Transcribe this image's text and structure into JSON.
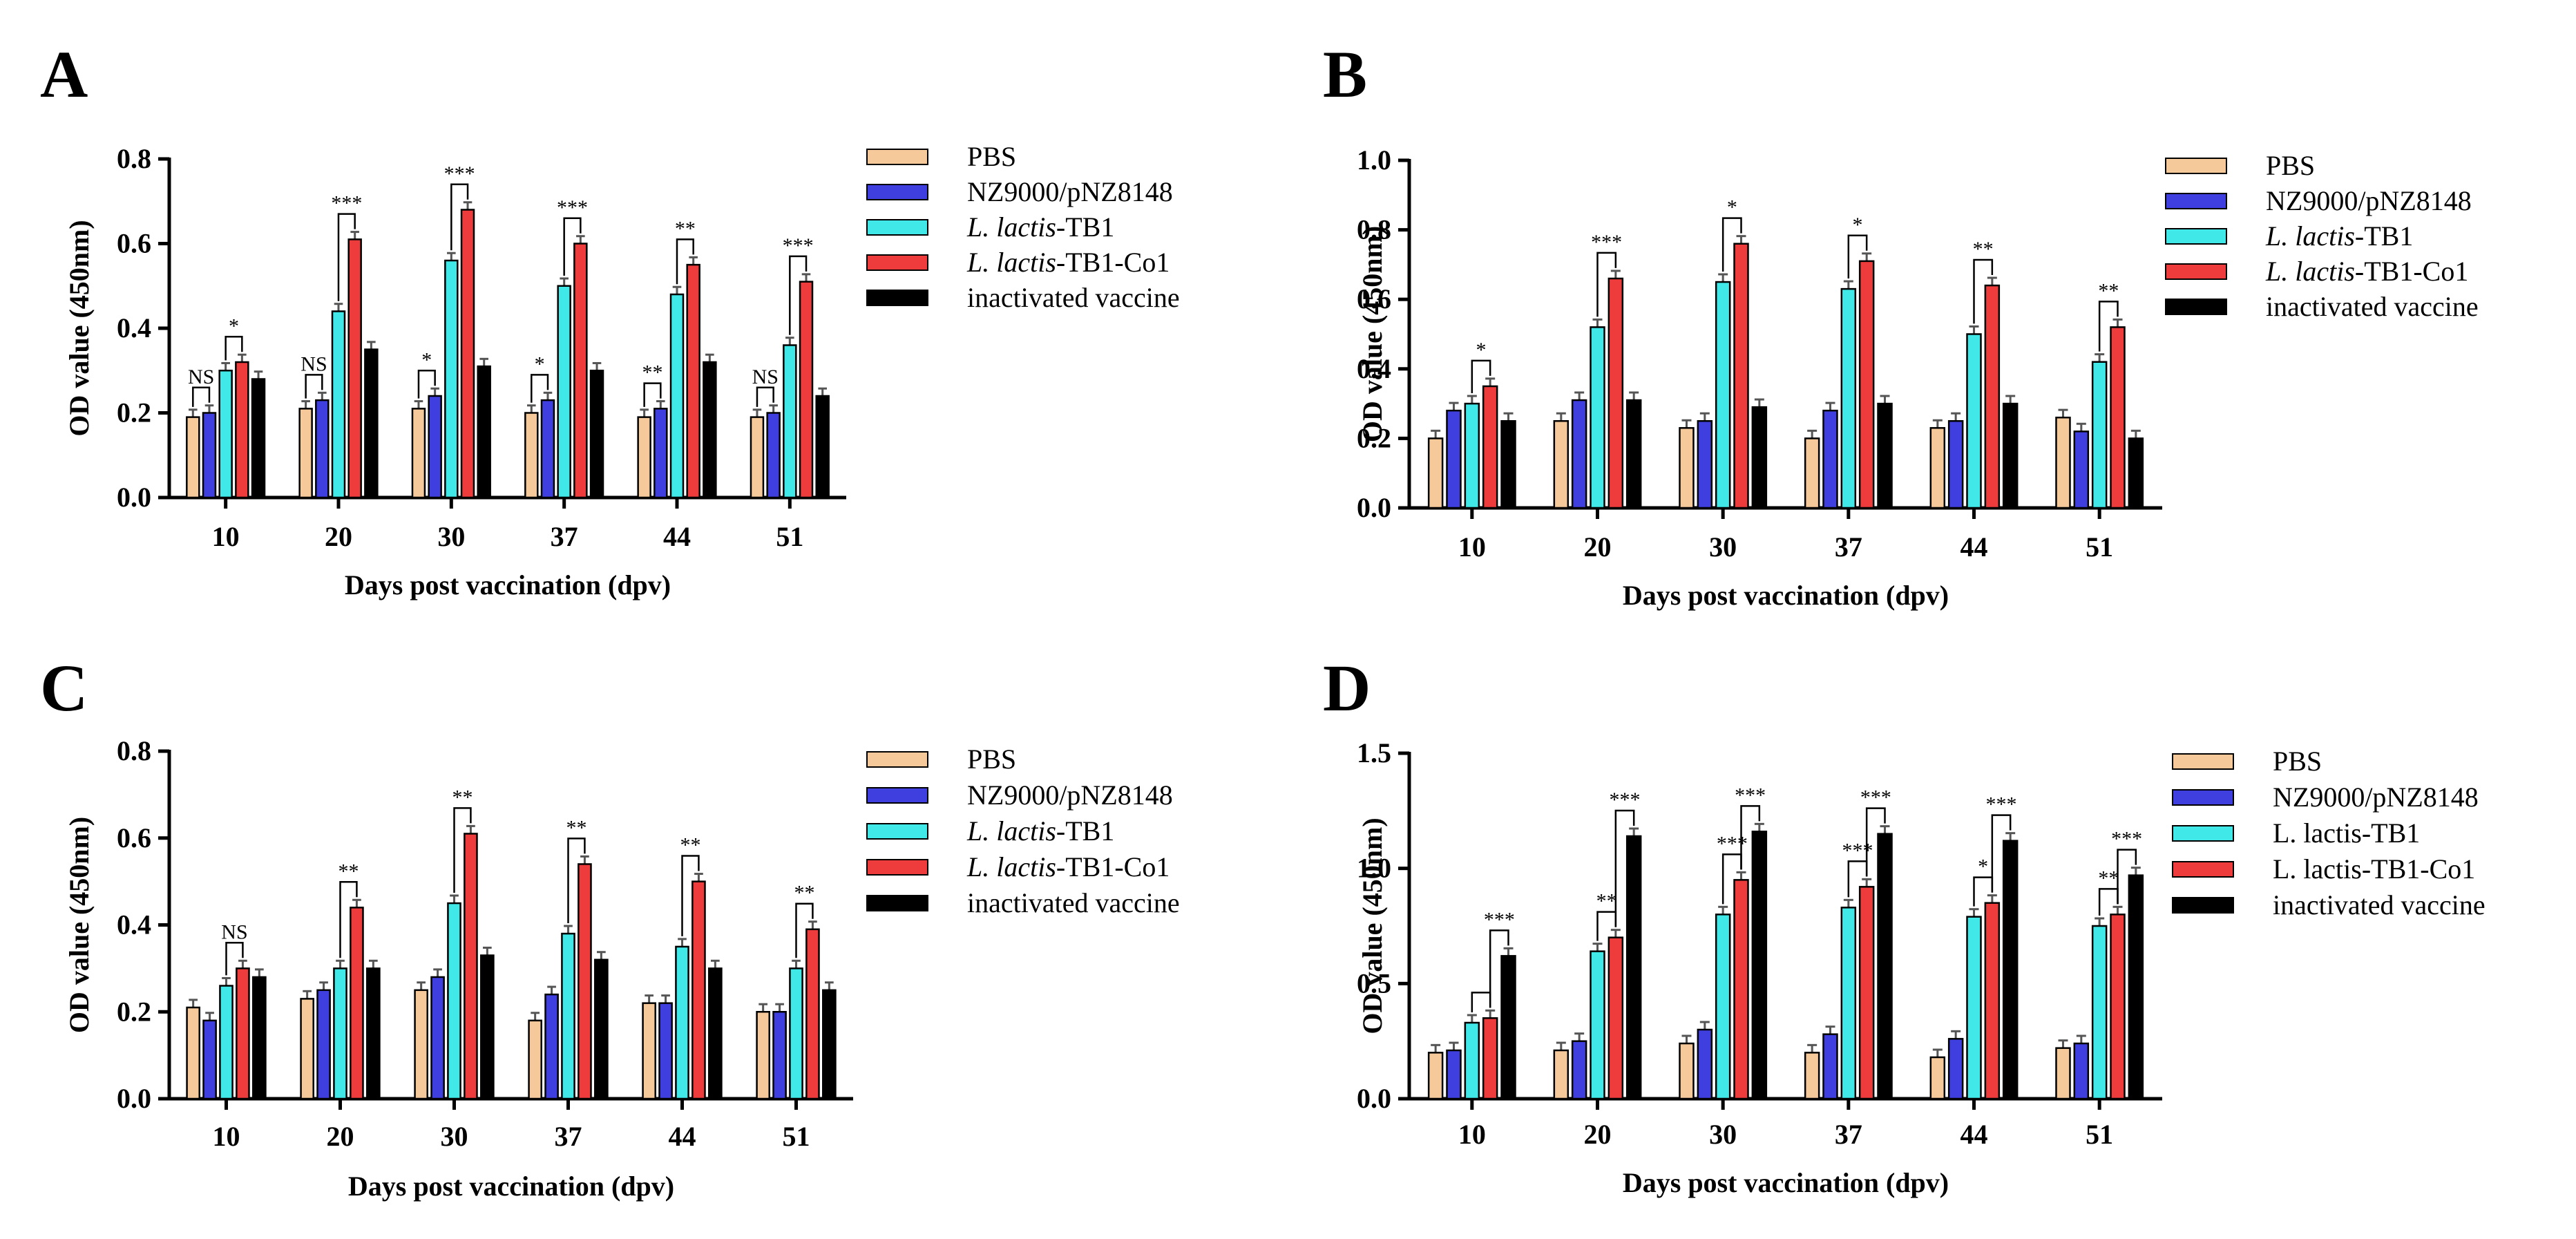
{
  "colors": {
    "PBS": "#f5c99a",
    "NZ9000/pNZ8148": "#3f3fe0",
    "L. lactis-TB1": "#40e8e8",
    "L. lactis-TB1-Co1": "#ee3b3b",
    "inactivated vaccine": "#000000"
  },
  "chart_data": [
    {
      "panel": "A",
      "type": "bar",
      "categories": [
        "10",
        "20",
        "30",
        "37",
        "44",
        "51"
      ],
      "xlabel": "Days post vaccination  (dpv)",
      "ylabel": "OD value (450nm)",
      "ylim": [
        0,
        0.8
      ],
      "yticks": [
        "0.0",
        "0.2",
        "0.4",
        "0.6",
        "0.8"
      ],
      "legend": [
        {
          "key": "PBS",
          "parts": [
            {
              "t": "PBS",
              "i": false
            }
          ]
        },
        {
          "key": "NZ9000/pNZ8148",
          "parts": [
            {
              "t": "NZ9000/pNZ8148",
              "i": false
            }
          ]
        },
        {
          "key": "L. lactis-TB1",
          "parts": [
            {
              "t": "L. lactis",
              "i": true
            },
            {
              "t": "-TB1",
              "i": false
            }
          ]
        },
        {
          "key": "L. lactis-TB1-Co1",
          "parts": [
            {
              "t": "L. lactis",
              "i": true
            },
            {
              "t": "-TB1-Co1",
              "i": false
            }
          ]
        },
        {
          "key": "inactivated vaccine",
          "parts": [
            {
              "t": "inactivated vaccine",
              "i": false
            }
          ]
        }
      ],
      "series": [
        {
          "name": "PBS",
          "values": [
            0.19,
            0.21,
            0.21,
            0.2,
            0.19,
            0.19
          ]
        },
        {
          "name": "NZ9000/pNZ8148",
          "values": [
            0.2,
            0.23,
            0.24,
            0.23,
            0.21,
            0.2
          ]
        },
        {
          "name": "L. lactis-TB1",
          "values": [
            0.3,
            0.44,
            0.56,
            0.5,
            0.48,
            0.36
          ]
        },
        {
          "name": "L. lactis-TB1-Co1",
          "values": [
            0.32,
            0.61,
            0.68,
            0.6,
            0.55,
            0.51
          ]
        },
        {
          "name": "inactivated vaccine",
          "values": [
            0.28,
            0.35,
            0.31,
            0.3,
            0.32,
            0.24
          ]
        }
      ],
      "annotations": [
        {
          "g": 0,
          "a": 0,
          "b": 1,
          "text": "NS"
        },
        {
          "g": 0,
          "a": 2,
          "b": 3,
          "text": "*"
        },
        {
          "g": 1,
          "a": 0,
          "b": 1,
          "text": "NS"
        },
        {
          "g": 1,
          "a": 2,
          "b": 3,
          "text": "***"
        },
        {
          "g": 2,
          "a": 0,
          "b": 1,
          "text": "*"
        },
        {
          "g": 2,
          "a": 2,
          "b": 3,
          "text": "***"
        },
        {
          "g": 3,
          "a": 0,
          "b": 1,
          "text": "*"
        },
        {
          "g": 3,
          "a": 2,
          "b": 3,
          "text": "***"
        },
        {
          "g": 4,
          "a": 0,
          "b": 1,
          "text": "**"
        },
        {
          "g": 4,
          "a": 2,
          "b": 3,
          "text": "**"
        },
        {
          "g": 5,
          "a": 0,
          "b": 1,
          "text": "NS"
        },
        {
          "g": 5,
          "a": 2,
          "b": 3,
          "text": "***"
        }
      ]
    },
    {
      "panel": "B",
      "type": "bar",
      "categories": [
        "10",
        "20",
        "30",
        "37",
        "44",
        "51"
      ],
      "xlabel": "Days post vaccination  (dpv)",
      "ylabel": "OD value (450nm)",
      "ylim": [
        0,
        1.0
      ],
      "yticks": [
        "0.0",
        "0.2",
        "0.4",
        "0.6",
        "0.8",
        "1.0"
      ],
      "legend": [
        {
          "key": "PBS",
          "parts": [
            {
              "t": "PBS",
              "i": false
            }
          ]
        },
        {
          "key": "NZ9000/pNZ8148",
          "parts": [
            {
              "t": "NZ9000/pNZ8148",
              "i": false
            }
          ]
        },
        {
          "key": "L. lactis-TB1",
          "parts": [
            {
              "t": "L. lactis",
              "i": true
            },
            {
              "t": "-TB1",
              "i": false
            }
          ]
        },
        {
          "key": "L. lactis-TB1-Co1",
          "parts": [
            {
              "t": "L. lactis",
              "i": true
            },
            {
              "t": "-TB1-Co1",
              "i": false
            }
          ]
        },
        {
          "key": "inactivated vaccine",
          "parts": [
            {
              "t": "inactivated vaccine",
              "i": false
            }
          ]
        }
      ],
      "series": [
        {
          "name": "PBS",
          "values": [
            0.2,
            0.25,
            0.23,
            0.2,
            0.23,
            0.26
          ]
        },
        {
          "name": "NZ9000/pNZ8148",
          "values": [
            0.28,
            0.31,
            0.25,
            0.28,
            0.25,
            0.22
          ]
        },
        {
          "name": "L. lactis-TB1",
          "values": [
            0.3,
            0.52,
            0.65,
            0.63,
            0.5,
            0.42
          ]
        },
        {
          "name": "L. lactis-TB1-Co1",
          "values": [
            0.35,
            0.66,
            0.76,
            0.71,
            0.64,
            0.52
          ]
        },
        {
          "name": "inactivated vaccine",
          "values": [
            0.25,
            0.31,
            0.29,
            0.3,
            0.3,
            0.2
          ]
        }
      ],
      "annotations": [
        {
          "g": 0,
          "a": 2,
          "b": 3,
          "text": "*"
        },
        {
          "g": 1,
          "a": 2,
          "b": 3,
          "text": "***"
        },
        {
          "g": 2,
          "a": 2,
          "b": 3,
          "text": "*"
        },
        {
          "g": 3,
          "a": 2,
          "b": 3,
          "text": "*"
        },
        {
          "g": 4,
          "a": 2,
          "b": 3,
          "text": "**"
        },
        {
          "g": 5,
          "a": 2,
          "b": 3,
          "text": "**"
        }
      ]
    },
    {
      "panel": "C",
      "type": "bar",
      "categories": [
        "10",
        "20",
        "30",
        "37",
        "44",
        "51"
      ],
      "xlabel": "Days post vaccination  (dpv)",
      "ylabel": "OD value (450nm)",
      "ylim": [
        0,
        0.8
      ],
      "yticks": [
        "0.0",
        "0.2",
        "0.4",
        "0.6",
        "0.8"
      ],
      "legend": [
        {
          "key": "PBS",
          "parts": [
            {
              "t": "PBS",
              "i": false
            }
          ]
        },
        {
          "key": "NZ9000/pNZ8148",
          "parts": [
            {
              "t": "NZ9000/pNZ8148",
              "i": false
            }
          ]
        },
        {
          "key": "L. lactis-TB1",
          "parts": [
            {
              "t": "L. lactis",
              "i": true
            },
            {
              "t": "-TB1",
              "i": false
            }
          ]
        },
        {
          "key": "L. lactis-TB1-Co1",
          "parts": [
            {
              "t": "L. lactis",
              "i": true
            },
            {
              "t": "-TB1-Co1",
              "i": false
            }
          ]
        },
        {
          "key": "inactivated vaccine",
          "parts": [
            {
              "t": "inactivated vaccine",
              "i": false
            }
          ]
        }
      ],
      "series": [
        {
          "name": "PBS",
          "values": [
            0.21,
            0.23,
            0.25,
            0.18,
            0.22,
            0.2
          ]
        },
        {
          "name": "NZ9000/pNZ8148",
          "values": [
            0.18,
            0.25,
            0.28,
            0.24,
            0.22,
            0.2
          ]
        },
        {
          "name": "L. lactis-TB1",
          "values": [
            0.26,
            0.3,
            0.45,
            0.38,
            0.35,
            0.3
          ]
        },
        {
          "name": "L. lactis-TB1-Co1",
          "values": [
            0.3,
            0.44,
            0.61,
            0.54,
            0.5,
            0.39
          ]
        },
        {
          "name": "inactivated vaccine",
          "values": [
            0.28,
            0.3,
            0.33,
            0.32,
            0.3,
            0.25
          ]
        }
      ],
      "annotations": [
        {
          "g": 0,
          "a": 2,
          "b": 3,
          "text": "NS"
        },
        {
          "g": 1,
          "a": 2,
          "b": 3,
          "text": "**"
        },
        {
          "g": 2,
          "a": 2,
          "b": 3,
          "text": "**"
        },
        {
          "g": 3,
          "a": 2,
          "b": 3,
          "text": "**"
        },
        {
          "g": 4,
          "a": 2,
          "b": 3,
          "text": "**"
        },
        {
          "g": 5,
          "a": 2,
          "b": 3,
          "text": "**"
        }
      ]
    },
    {
      "panel": "D",
      "type": "bar",
      "categories": [
        "10",
        "20",
        "30",
        "37",
        "44",
        "51"
      ],
      "xlabel": "Days post vaccination  (dpv)",
      "ylabel": "OD value (450nm)",
      "ylim": [
        0,
        1.5
      ],
      "yticks": [
        "0.0",
        "0.5",
        "1.0",
        "1.5"
      ],
      "legend": [
        {
          "key": "PBS",
          "parts": [
            {
              "t": "PBS",
              "i": false
            }
          ]
        },
        {
          "key": "NZ9000/pNZ8148",
          "parts": [
            {
              "t": "NZ9000/pNZ8148",
              "i": false
            }
          ]
        },
        {
          "key": "L. lactis-TB1",
          "parts": [
            {
              "t": "L. lactis-TB1",
              "i": false
            }
          ]
        },
        {
          "key": "L. lactis-TB1-Co1",
          "parts": [
            {
              "t": "L. lactis-TB1-Co1",
              "i": false
            }
          ]
        },
        {
          "key": "inactivated vaccine",
          "parts": [
            {
              "t": "inactivated vaccine",
              "i": false
            }
          ]
        }
      ],
      "series": [
        {
          "name": "PBS",
          "values": [
            0.2,
            0.21,
            0.24,
            0.2,
            0.18,
            0.22
          ]
        },
        {
          "name": "NZ9000/pNZ8148",
          "values": [
            0.21,
            0.25,
            0.3,
            0.28,
            0.26,
            0.24
          ]
        },
        {
          "name": "L. lactis-TB1",
          "values": [
            0.33,
            0.64,
            0.8,
            0.83,
            0.79,
            0.75
          ]
        },
        {
          "name": "L. lactis-TB1-Co1",
          "values": [
            0.35,
            0.7,
            0.95,
            0.92,
            0.85,
            0.8
          ]
        },
        {
          "name": "inactivated vaccine",
          "values": [
            0.62,
            1.14,
            1.16,
            1.15,
            1.12,
            0.97
          ]
        }
      ],
      "annotations": [
        {
          "g": 0,
          "a": 2,
          "b": 3,
          "text": ""
        },
        {
          "g": 0,
          "a": 3,
          "b": 4,
          "text": "***"
        },
        {
          "g": 1,
          "a": 2,
          "b": 3,
          "text": "**"
        },
        {
          "g": 1,
          "a": 3,
          "b": 4,
          "text": "***"
        },
        {
          "g": 2,
          "a": 2,
          "b": 3,
          "text": "***"
        },
        {
          "g": 2,
          "a": 3,
          "b": 4,
          "text": "***"
        },
        {
          "g": 3,
          "a": 2,
          "b": 3,
          "text": "***"
        },
        {
          "g": 3,
          "a": 3,
          "b": 4,
          "text": "***"
        },
        {
          "g": 4,
          "a": 2,
          "b": 3,
          "text": "*"
        },
        {
          "g": 4,
          "a": 3,
          "b": 4,
          "text": "***"
        },
        {
          "g": 5,
          "a": 2,
          "b": 3,
          "text": "**"
        },
        {
          "g": 5,
          "a": 3,
          "b": 4,
          "text": "***"
        }
      ]
    }
  ]
}
